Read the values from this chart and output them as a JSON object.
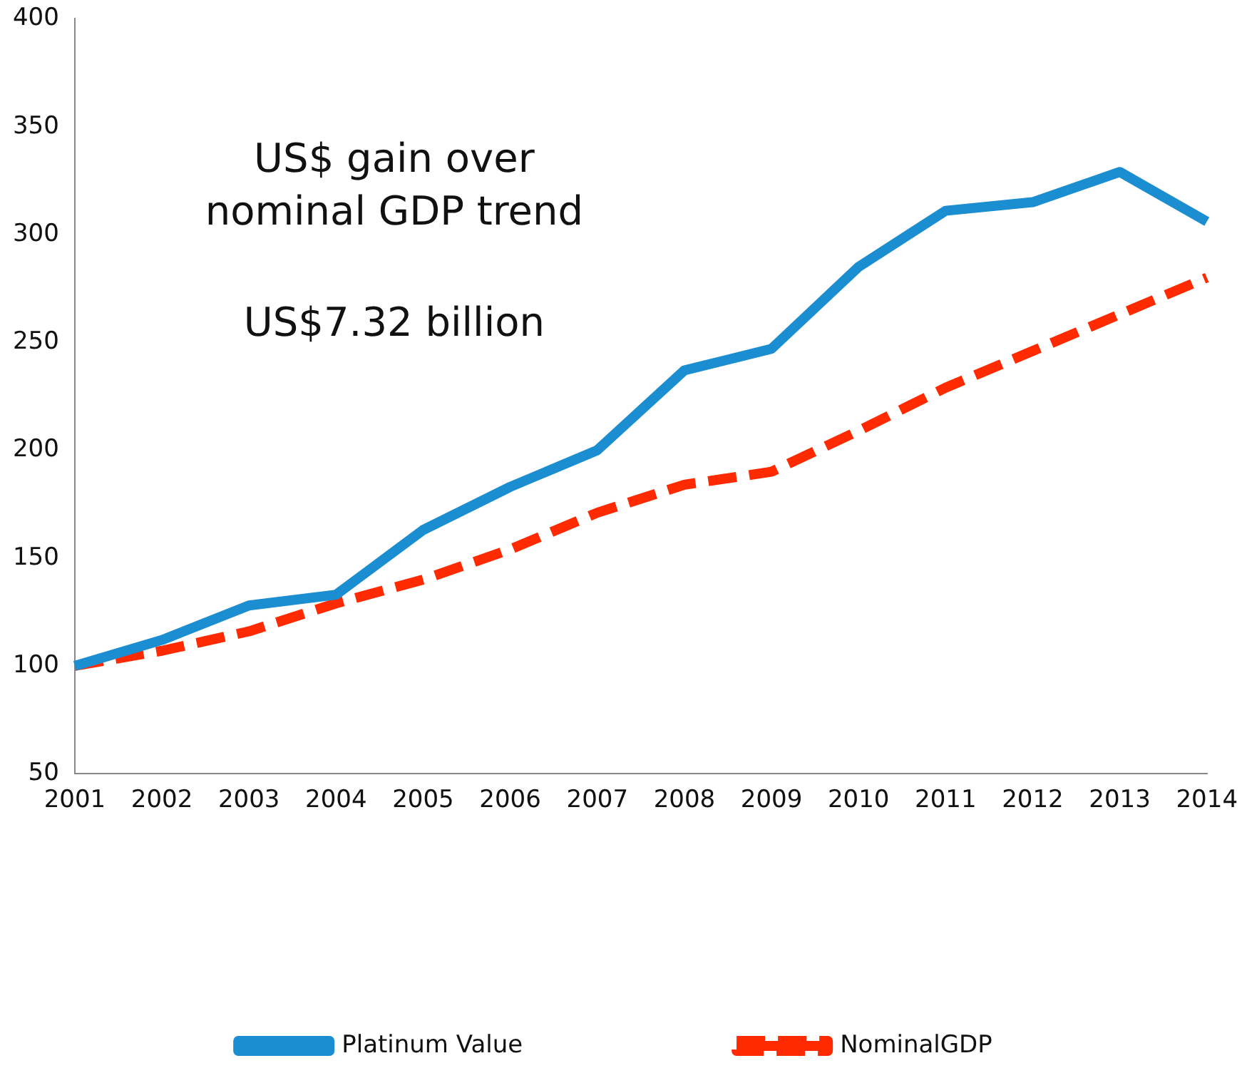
{
  "chart_data": {
    "type": "line",
    "categories": [
      "2001",
      "2002",
      "2003",
      "2004",
      "2005",
      "2006",
      "2007",
      "2008",
      "2009",
      "2010",
      "2011",
      "2012",
      "2013",
      "2014"
    ],
    "series": [
      {
        "name": "Platinum Value",
        "color": "#1b8ed2",
        "line_style": "solid",
        "values": [
          100,
          112,
          128,
          133,
          163,
          183,
          200,
          237,
          247,
          285,
          311,
          315,
          329,
          306
        ]
      },
      {
        "name": "NominalGDP",
        "color": "#ff2a00",
        "line_style": "dashed",
        "values": [
          100,
          107,
          116,
          129,
          140,
          154,
          171,
          184,
          190,
          209,
          229,
          246,
          263,
          280
        ]
      }
    ],
    "ylim": [
      50,
      400
    ],
    "yticks": [
      50,
      100,
      150,
      200,
      250,
      300,
      350,
      400
    ],
    "grid": false,
    "legend": "bottom",
    "marker": "none",
    "annotations": [
      "US$ gain over nominal GDP trend",
      "US$7.32 billion"
    ]
  }
}
